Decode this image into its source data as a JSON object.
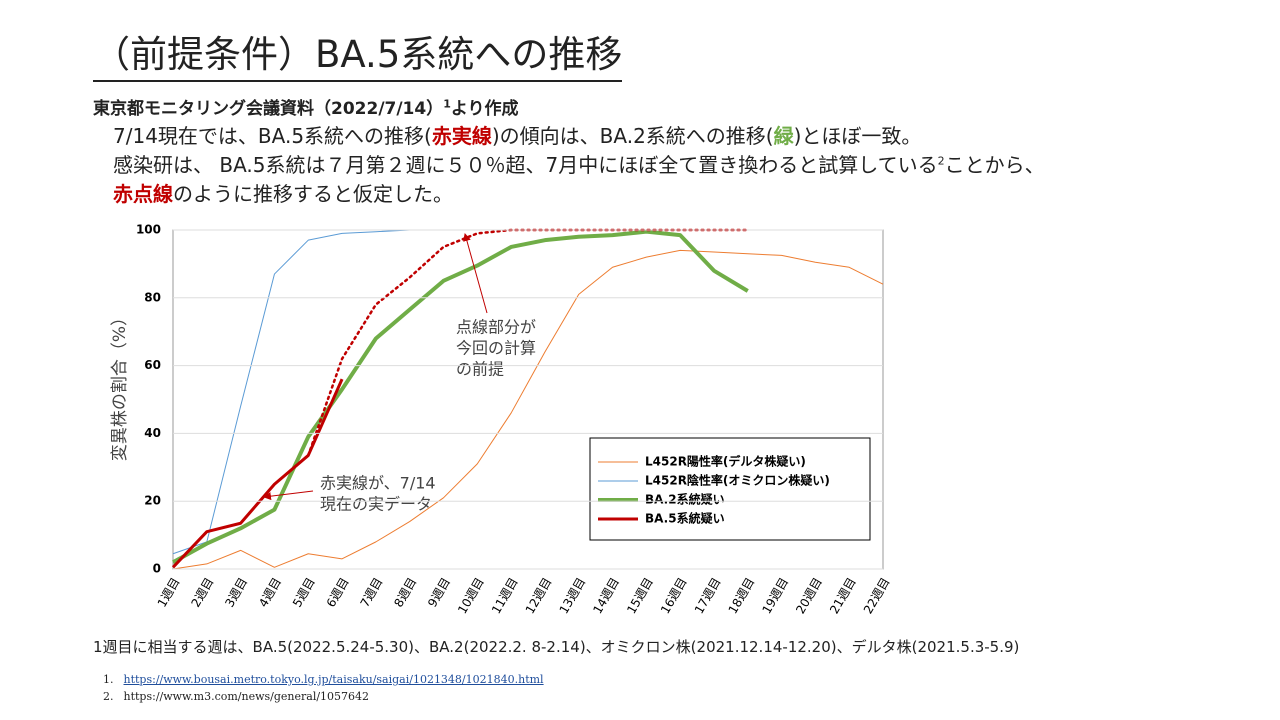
{
  "title": "（前提条件）BA.5系統への推移",
  "source": [
    {
      "text": "東京都モニタリング会議資料（2022/7/14）"
    },
    {
      "text": "1",
      "style": "sup"
    },
    {
      "text": "より作成"
    }
  ],
  "intro": [
    [
      {
        "text": "7/14現在では、BA.5系統への推移("
      },
      {
        "text": "赤実線",
        "style": "red"
      },
      {
        "text": ")の傾向は、BA.2系統への推移("
      },
      {
        "text": "緑",
        "style": "green"
      },
      {
        "text": ")とほぼ一致。"
      }
    ],
    [
      {
        "text": "感染研は、 BA.5系統は７月第２週に５０％超、7月中にほぼ全て置き換わると試算している"
      },
      {
        "text": "2",
        "style": "sup"
      },
      {
        "text": "ことから、"
      }
    ],
    [
      {
        "text": "赤点線",
        "style": "red"
      },
      {
        "text": "のように推移すると仮定した。"
      }
    ]
  ],
  "chart_data": {
    "type": "line",
    "y_label": "変異株の割合（%）",
    "categories": [
      "1週目",
      "2週目",
      "3週目",
      "4週目",
      "5週目",
      "6週目",
      "7週目",
      "8週目",
      "9週目",
      "10週目",
      "11週目",
      "12週目",
      "13週目",
      "14週目",
      "15週目",
      "16週目",
      "17週目",
      "18週目",
      "19週目",
      "20週目",
      "21週目",
      "22週目"
    ],
    "ylim": [
      0,
      100
    ],
    "yticks": [
      0,
      20,
      40,
      60,
      80,
      100
    ],
    "grid": true,
    "series": [
      {
        "name": "L452R陽性率(デルタ株疑い)",
        "color": "#ed7d31",
        "width": 1,
        "values": [
          0,
          1.5,
          5.5,
          0.5,
          4.5,
          3,
          8,
          14,
          21,
          31,
          46,
          64,
          81,
          89,
          92,
          94,
          93.5,
          93,
          92.5,
          90.5,
          89,
          84
        ]
      },
      {
        "name": "L452R陰性率(オミクロン株疑い)",
        "color": "#5b9bd5",
        "width": 1,
        "values": [
          4.5,
          8,
          48,
          87,
          97,
          99,
          99.5,
          100,
          100,
          100,
          100,
          100,
          100,
          100,
          100,
          100,
          100,
          100,
          100,
          100,
          100,
          100
        ]
      },
      {
        "name": "BA.2系統疑い",
        "color": "#70ad47",
        "width": 4,
        "values": [
          2,
          7.5,
          12,
          17.5,
          39,
          53,
          68,
          76.5,
          85,
          89.5,
          95,
          97,
          98,
          98.5,
          99.5,
          98.5,
          88,
          82,
          null,
          null,
          null,
          null
        ]
      },
      {
        "name": "BA.5系統疑い",
        "color": "#c00000",
        "width": 3,
        "values": [
          0.5,
          11,
          13.5,
          25,
          33.5,
          56,
          null,
          null,
          null,
          null,
          null,
          null,
          null,
          null,
          null,
          null,
          null,
          null,
          null,
          null,
          null,
          null
        ]
      },
      {
        "color": "#c00000",
        "width": 2.5,
        "line_style": "dotted",
        "values": [
          null,
          null,
          null,
          null,
          33.5,
          62,
          78,
          86,
          95,
          99,
          100,
          100,
          100,
          100,
          100,
          100,
          100,
          100,
          null,
          null,
          null,
          null
        ]
      }
    ],
    "annotations": [
      {
        "lines": [
          "点線部分が",
          "今回の計算",
          "の前提"
        ]
      },
      {
        "lines": [
          "赤実線が、7/14",
          "現在の実データ"
        ]
      }
    ]
  },
  "note": "1週目に相当する週は、BA.5(2022.5.24-5.30)、BA.2(2022.2. 8-2.14)、オミクロン株(2021.12.14-12.20)、デルタ株(2021.5.3-5.9)",
  "references": [
    {
      "num": "1.",
      "text": "https://www.bousai.metro.tokyo.lg.jp/taisaku/saigai/1021348/1021840.html"
    },
    {
      "num": "2.",
      "text": "https://www.m3.com/news/general/1057642"
    }
  ]
}
